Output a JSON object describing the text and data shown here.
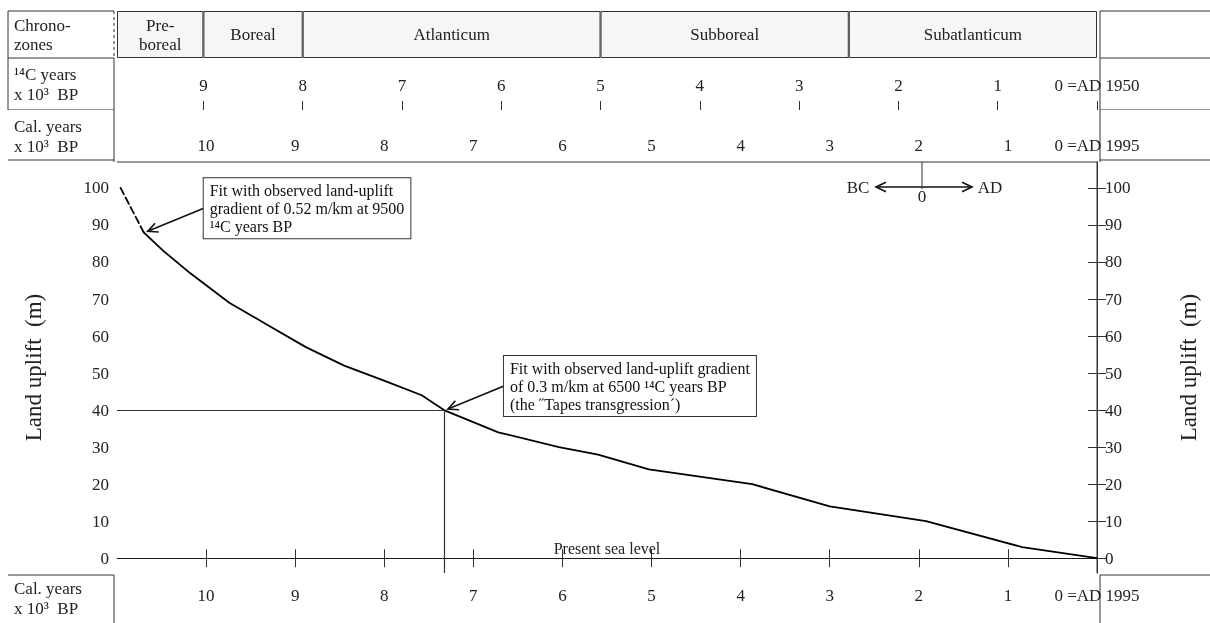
{
  "chart_data": [
    {
      "type": "bar",
      "orientation": "horizontal",
      "stacked": true,
      "categories": [
        "Chrono-zones"
      ],
      "xlabel": "¹⁴C years\nx 10³  BP",
      "xlim": [
        9.87,
        0
      ],
      "xticks": [
        9,
        8,
        7,
        6,
        5,
        4,
        3,
        2,
        1,
        {
          "value": 0,
          "label": "0 =AD 1950"
        }
      ],
      "series": [
        {
          "name": "Subatlanticum",
          "color": "#f6f6f6",
          "values": [
            2.5
          ]
        },
        {
          "name": "Subboreal",
          "color": "#f6f6f6",
          "values": [
            2.5
          ]
        },
        {
          "name": "Atlanticum",
          "color": "#f6f6f6",
          "values": [
            3
          ]
        },
        {
          "name": "Boreal",
          "color": "#f6f6f6",
          "values": [
            1
          ]
        },
        {
          "name": "Pre-boreal",
          "color": "#f6f6f6",
          "values": [
            0.87
          ]
        }
      ]
    },
    {
      "type": "line",
      "xlabel": "Cal. years\nx 10³  BP",
      "x2label": "Cal. years\nx 10³  BP",
      "ylabel": "Land uplift  (m)",
      "y2label": "Land uplift  (m)",
      "xlim": [
        11.0,
        0
      ],
      "xticks": [
        10,
        9,
        8,
        7,
        6,
        5,
        4,
        3,
        2,
        1,
        {
          "value": 0,
          "label": "0 =AD 1995"
        }
      ],
      "x2lim": [
        11.0,
        0
      ],
      "x2ticks": [
        10,
        9,
        8,
        7,
        6,
        5,
        4,
        3,
        2,
        1,
        {
          "value": 0,
          "label": "0 =AD 1995"
        }
      ],
      "ylim": [
        -4,
        107
      ],
      "yticks": [
        0,
        10,
        20,
        30,
        40,
        50,
        60,
        70,
        80,
        90,
        100
      ],
      "y2lim": [
        -4,
        107
      ],
      "y2ticks": [
        0,
        10,
        20,
        30,
        40,
        50,
        60,
        70,
        80,
        90,
        100
      ],
      "grid": false,
      "marker": "none",
      "series": [
        {
          "color": "#000000",
          "line_style": "dashed",
          "x": [
            10.96,
            10.7
          ],
          "values": [
            100,
            88
          ]
        },
        {
          "color": "#000000",
          "line_style": "solid",
          "x": [
            10.7,
            10.48,
            10.18,
            9.74,
            9.31,
            8.88,
            8.45,
            8.01,
            7.58,
            7.33,
            6.72,
            6.04,
            5.6,
            5.03,
            3.87,
            3.0,
            1.92,
            0.84,
            0
          ],
          "values": [
            88,
            83,
            77,
            69,
            63,
            57,
            52,
            48,
            44,
            40,
            34,
            30,
            28,
            24,
            20,
            14,
            10,
            3,
            0
          ]
        }
      ],
      "ref_lines": [
        {
          "axis": "y",
          "value": 0,
          "label": "Present sea level",
          "line_style": "dotted",
          "color": "#000000"
        },
        {
          "axis": "y",
          "value": 40,
          "color": "#333333",
          "line_style": "solid"
        },
        {
          "axis": "x",
          "value": 7.33,
          "color": "#333333",
          "line_style": "solid"
        }
      ],
      "annotations": [
        {
          "text": "Fit with observed land-uplift\ngradient of 0.52 m/km at 9500\n¹⁴C years BP",
          "x": 10.7,
          "y": 88
        },
        {
          "text": "Fit with observed land-uplift gradient\nof 0.3 m/km at 6500 ¹⁴C years BP\n(the ˝Tapes transgression´)",
          "x": 7.33,
          "y": 40
        },
        "BC",
        "0",
        "AD"
      ]
    }
  ]
}
